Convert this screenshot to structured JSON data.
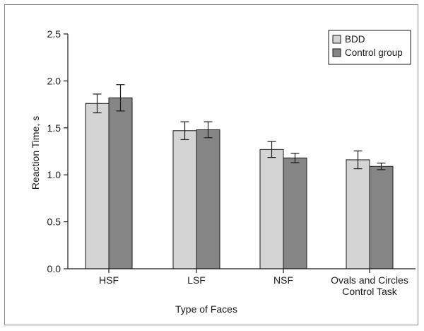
{
  "chart_data": {
    "type": "bar",
    "title": "",
    "xlabel": "Type of Faces",
    "ylabel": "Reaction Time, s",
    "ylim": [
      0,
      2.5
    ],
    "yticks": [
      "0.0",
      "0.5",
      "1.0",
      "1.5",
      "2.0",
      "2.5"
    ],
    "categories": [
      [
        "HSF"
      ],
      [
        "LSF"
      ],
      [
        "NSF"
      ],
      [
        "Ovals and Circles",
        "Control Task"
      ]
    ],
    "series": [
      {
        "name": "BDD",
        "color": "#d4d4d4",
        "values": [
          1.76,
          1.47,
          1.27,
          1.16
        ],
        "error": [
          0.1,
          0.095,
          0.085,
          0.095
        ]
      },
      {
        "name": "Control group",
        "color": "#858585",
        "values": [
          1.82,
          1.48,
          1.18,
          1.09
        ],
        "error": [
          0.14,
          0.085,
          0.05,
          0.035
        ]
      }
    ],
    "grid": false,
    "legend_position": "top-right"
  }
}
